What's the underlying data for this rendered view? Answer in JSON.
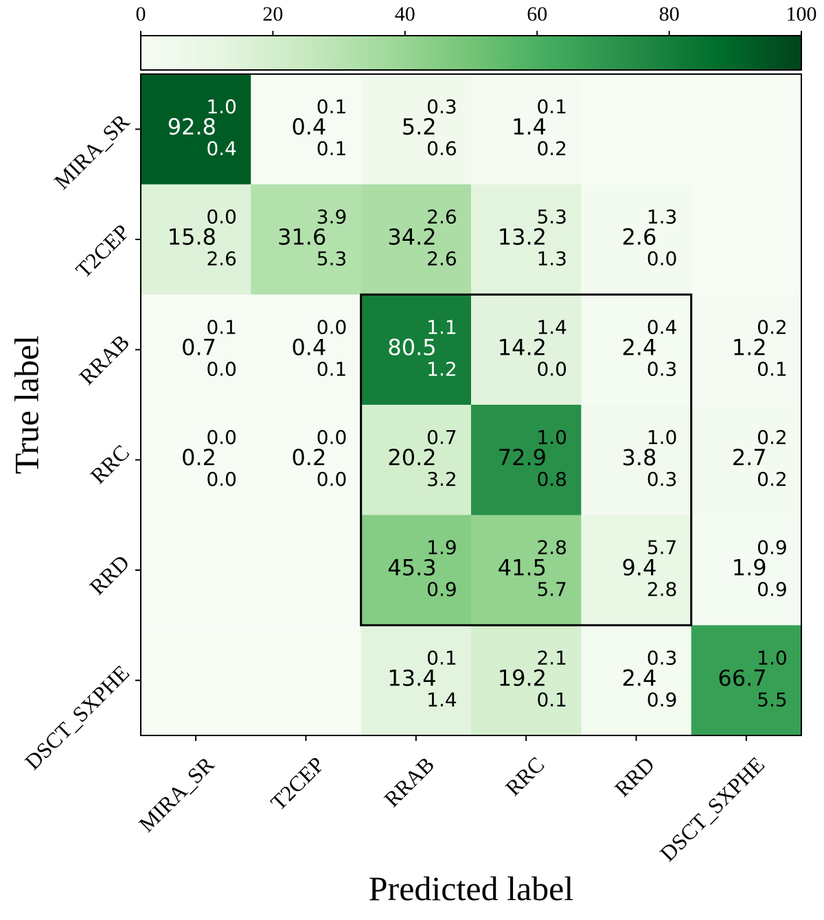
{
  "chart_data": {
    "type": "heatmap",
    "x_label": "Predicted label",
    "y_label": "True label",
    "x_categories": [
      "MIRA_SR",
      "T2CEP",
      "RRAB",
      "RRC",
      "RRD",
      "DSCT_SXPHE"
    ],
    "y_categories": [
      "MIRA_SR",
      "T2CEP",
      "RRAB",
      "RRC",
      "RRD",
      "DSCT_SXPHE"
    ],
    "values": [
      [
        92.8,
        0.4,
        5.2,
        1.4,
        null,
        null
      ],
      [
        15.8,
        31.6,
        34.2,
        13.2,
        2.6,
        null
      ],
      [
        0.7,
        0.4,
        80.5,
        14.2,
        2.4,
        1.2
      ],
      [
        0.2,
        0.2,
        20.2,
        72.9,
        3.8,
        2.7
      ],
      [
        null,
        null,
        45.3,
        41.5,
        9.4,
        1.9
      ],
      [
        null,
        null,
        13.4,
        19.2,
        2.4,
        66.7
      ]
    ],
    "err_plus": [
      [
        1.0,
        0.1,
        0.3,
        0.1,
        null,
        null
      ],
      [
        0.0,
        3.9,
        2.6,
        5.3,
        1.3,
        null
      ],
      [
        0.1,
        0.0,
        1.1,
        1.4,
        0.4,
        0.2
      ],
      [
        0.0,
        0.0,
        0.7,
        1.0,
        1.0,
        0.2
      ],
      [
        null,
        null,
        1.9,
        2.8,
        5.7,
        0.9
      ],
      [
        null,
        null,
        0.1,
        2.1,
        0.3,
        1.0
      ]
    ],
    "err_plus_labels": [
      [
        "1.0",
        "0.1",
        "0.3",
        "0.1",
        null,
        null
      ],
      [
        "0.0",
        "3.9",
        "2.6",
        "5.3",
        "1.3",
        null
      ],
      [
        "0.1",
        "0.0",
        "1.1",
        "1.4",
        "0.4",
        "0.2"
      ],
      [
        "0.0",
        "0.0",
        "0.7",
        "1.0",
        "1.0",
        "0.2"
      ],
      [
        null,
        null,
        "1.9",
        "2.8",
        "5.7",
        "0.9"
      ],
      [
        null,
        null,
        "0.1",
        "2.1",
        "0.3",
        "1.0"
      ]
    ],
    "err_minus": [
      [
        0.4,
        0.1,
        0.6,
        0.2,
        null,
        null
      ],
      [
        2.6,
        5.3,
        2.6,
        1.3,
        0.0,
        null
      ],
      [
        0.0,
        0.1,
        1.2,
        0.0,
        0.3,
        0.1
      ],
      [
        0.0,
        0.0,
        3.2,
        0.8,
        0.3,
        0.2
      ],
      [
        null,
        null,
        0.9,
        5.7,
        2.8,
        0.9
      ],
      [
        null,
        null,
        1.4,
        0.1,
        0.9,
        5.5
      ]
    ],
    "err_minus_labels": [
      [
        "0.4",
        "0.1",
        "0.6",
        "0.2",
        null,
        null
      ],
      [
        "2.6",
        "5.3",
        "2.6",
        "1.3",
        "0.0",
        null
      ],
      [
        "0.0",
        "0.1",
        "1.2",
        "0.0",
        "0.3",
        "0.1"
      ],
      [
        "0.0",
        "0.0",
        "3.2",
        "0.8",
        "0.3",
        "0.2"
      ],
      [
        null,
        null,
        "0.9",
        "5.7",
        "2.8",
        "0.9"
      ],
      [
        null,
        null,
        "1.4",
        "0.1",
        "0.9",
        "5.5"
      ]
    ],
    "colorscale": [
      "#f7fcf5",
      "#e5f5e0",
      "#c7e9c0",
      "#a1d99b",
      "#74c476",
      "#41ab5d",
      "#238b45",
      "#006d2c",
      "#00441b"
    ],
    "clim": [
      0,
      100
    ],
    "cticks": [
      0,
      20,
      40,
      60,
      80,
      100
    ]
  }
}
